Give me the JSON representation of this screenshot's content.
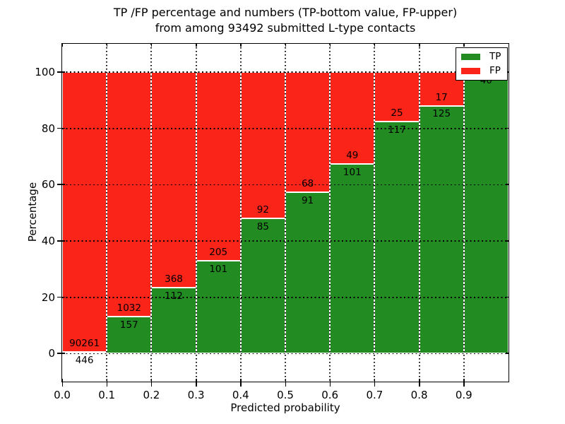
{
  "title": {
    "line1": "TP /FP percentage and numbers (TP-bottom value, FP-upper)",
    "line2": "from among 93492 submitted L-type contacts"
  },
  "chart_data": {
    "type": "bar",
    "stacked": true,
    "title": "TP /FP percentage and numbers (TP-bottom value, FP-upper) from among 93492 submitted L-type contacts",
    "xlabel": "Predicted probability",
    "ylabel": "Percentage",
    "xlim": [
      0,
      1
    ],
    "ylim": [
      -10,
      110
    ],
    "bin_width": 0.1,
    "categories": [
      0.0,
      0.1,
      0.2,
      0.3,
      0.4,
      0.5,
      0.6,
      0.7,
      0.8,
      0.9
    ],
    "xticks": [
      "0.0",
      "0.1",
      "0.2",
      "0.3",
      "0.4",
      "0.5",
      "0.6",
      "0.7",
      "0.8",
      "0.9"
    ],
    "yticks": [
      0,
      20,
      40,
      60,
      80,
      100
    ],
    "series": [
      {
        "name": "TP",
        "color": "#228b22",
        "values": [
          446,
          157,
          112,
          101,
          85,
          91,
          101,
          117,
          125,
          40
        ]
      },
      {
        "name": "FP",
        "color": "#fb2419",
        "values": [
          90261,
          1032,
          368,
          205,
          92,
          68,
          49,
          25,
          17,
          null
        ]
      }
    ],
    "tp_percent": [
      0.49,
      13.2,
      23.33,
      33.01,
      48.02,
      57.23,
      67.33,
      82.39,
      88.03,
      100
    ],
    "grid": "dotted",
    "grid_color": "#000000",
    "legend": {
      "position": "upper-right",
      "entries": [
        {
          "label": "TP",
          "color": "#228b22"
        },
        {
          "label": "FP",
          "color": "#fb2419"
        }
      ]
    }
  }
}
